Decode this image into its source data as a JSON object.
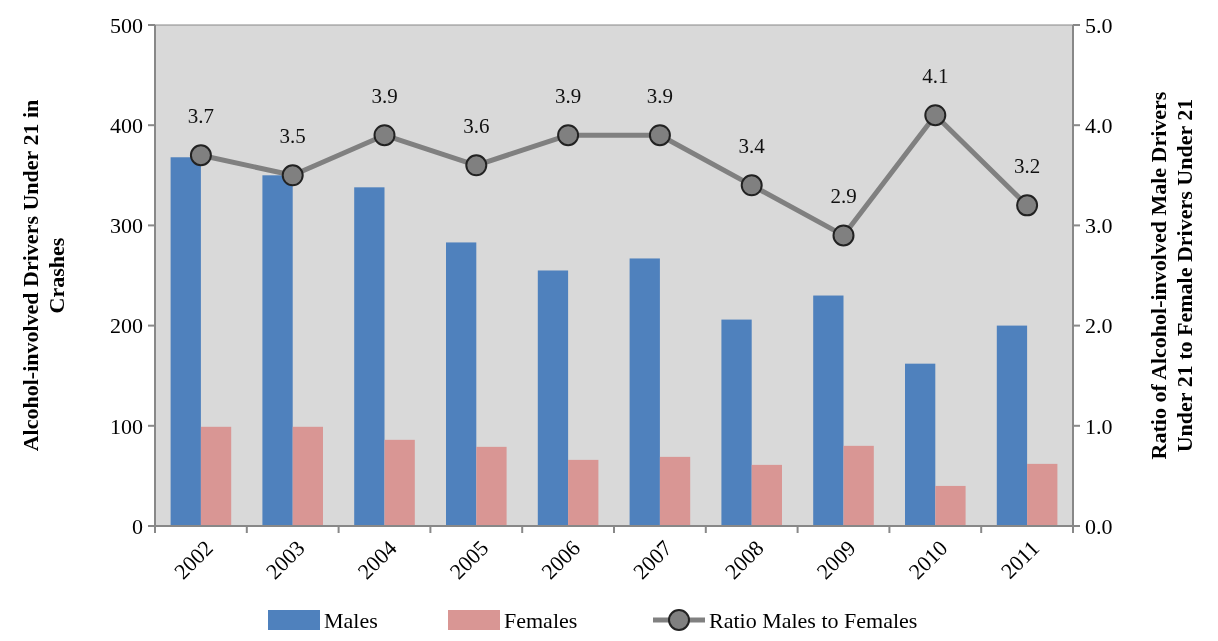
{
  "chart_data": {
    "type": "bar",
    "ylabel": "Alcohol-involved Drivers Under 21 in Crashes",
    "y2label": "Ratio of Alcohol-involved Male Drivers Under 21 to Female Drivers Under 21",
    "categories": [
      "2002",
      "2003",
      "2004",
      "2005",
      "2006",
      "2007",
      "2008",
      "2009",
      "2010",
      "2011"
    ],
    "series": [
      {
        "name": "Males",
        "color": "#4f81bd",
        "values": [
          368,
          350,
          338,
          283,
          255,
          267,
          206,
          230,
          162,
          200
        ]
      },
      {
        "name": "Females",
        "color": "#d99694",
        "values": [
          99,
          99,
          86,
          79,
          66,
          69,
          61,
          80,
          40,
          62
        ]
      },
      {
        "name": "Ratio Males to Females",
        "type": "line",
        "axis": "y2",
        "color": "#808080",
        "marker": "circle",
        "values": [
          3.7,
          3.5,
          3.9,
          3.6,
          3.9,
          3.9,
          3.4,
          2.9,
          4.1,
          3.2
        ],
        "value_labels": [
          "3.7",
          "3.5",
          "3.9",
          "3.6",
          "3.9",
          "3.9",
          "3.4",
          "2.9",
          "4.1",
          "3.2"
        ]
      }
    ],
    "ylim": [
      0,
      500
    ],
    "yticks": [
      0,
      100,
      200,
      300,
      400,
      500
    ],
    "y2lim": [
      0,
      5
    ],
    "y2ticks": [
      {
        "value": 0,
        "label": "0.0"
      },
      {
        "value": 1,
        "label": "1.0"
      },
      {
        "value": 2,
        "label": "2.0"
      },
      {
        "value": 3,
        "label": "3.0"
      },
      {
        "value": 4,
        "label": "4.0"
      },
      {
        "value": 5,
        "label": "5.0"
      }
    ],
    "legend": "bottom"
  }
}
